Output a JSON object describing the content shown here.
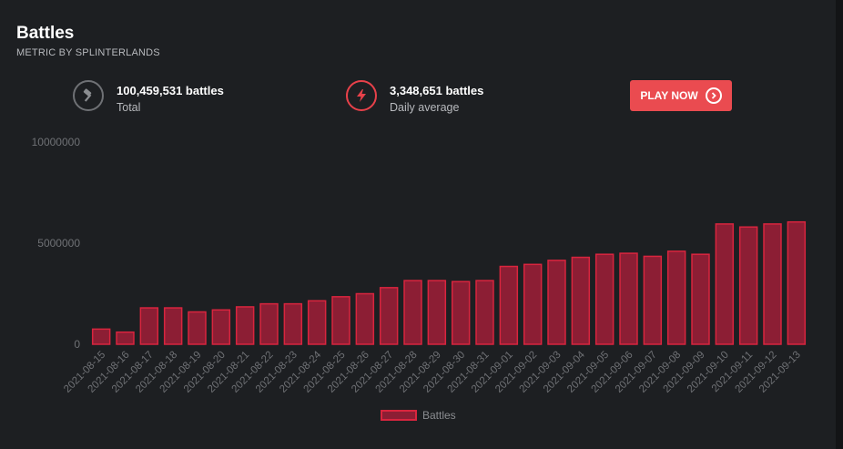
{
  "header": {
    "title": "Battles",
    "subtitle": "METRIC BY SPLINTERLANDS"
  },
  "stats": [
    {
      "icon": "hammer-icon",
      "value": "100,459,531 battles",
      "label": "Total"
    },
    {
      "icon": "lightning-icon",
      "value": "3,348,651 battles",
      "label": "Daily average"
    }
  ],
  "cta": {
    "label": "PLAY NOW",
    "icon": "chevron-right-circle-icon"
  },
  "colors": {
    "bar_fill": "#8c1e34",
    "bar_stroke": "#d8253e",
    "accent": "#ea4b50"
  },
  "chart_data": {
    "type": "bar",
    "categories": [
      "2021-08-15",
      "2021-08-16",
      "2021-08-17",
      "2021-08-18",
      "2021-08-19",
      "2021-08-20",
      "2021-08-21",
      "2021-08-22",
      "2021-08-23",
      "2021-08-24",
      "2021-08-25",
      "2021-08-26",
      "2021-08-27",
      "2021-08-28",
      "2021-08-29",
      "2021-08-30",
      "2021-08-31",
      "2021-09-01",
      "2021-09-02",
      "2021-09-03",
      "2021-09-04",
      "2021-09-05",
      "2021-09-06",
      "2021-09-07",
      "2021-09-08",
      "2021-09-09",
      "2021-09-10",
      "2021-09-11",
      "2021-09-12",
      "2021-09-13"
    ],
    "series": [
      {
        "name": "Battles",
        "values": [
          750000,
          600000,
          1800000,
          1800000,
          1600000,
          1700000,
          1850000,
          2000000,
          2000000,
          2150000,
          2350000,
          2500000,
          2800000,
          3150000,
          3150000,
          3100000,
          3150000,
          3850000,
          3950000,
          4150000,
          4300000,
          4450000,
          4500000,
          4350000,
          4600000,
          4450000,
          5950000,
          5800000,
          5950000,
          6050000
        ]
      }
    ],
    "yticks": [
      0,
      5000000,
      10000000
    ],
    "ylim": [
      0,
      10000000
    ],
    "grid": false,
    "legend": "bottom"
  }
}
